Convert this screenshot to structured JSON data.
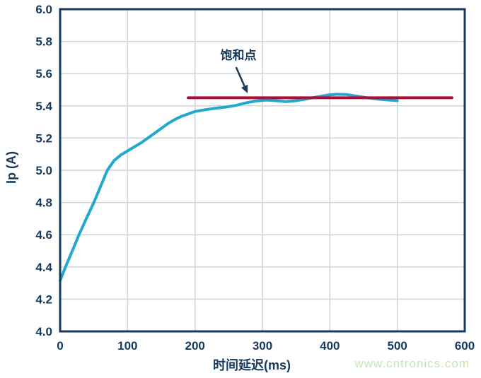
{
  "watermark": {
    "text": "www.cntronics.com",
    "color": "#c6e5b3"
  },
  "chart_data": {
    "type": "line",
    "title": "",
    "xlabel": "时间延迟(ms)",
    "ylabel": "Ip (A)",
    "xlim": [
      0,
      600
    ],
    "ylim": [
      4.0,
      6.0
    ],
    "grid": true,
    "legend_position": "none",
    "colors": {
      "axis_and_text": "#17395c",
      "grid": "#ccd4dc",
      "curve": "#23a8cd",
      "saturation_line": "#b00c38"
    },
    "xticks": [
      {
        "value": 0,
        "label": "0"
      },
      {
        "value": 100,
        "label": "100"
      },
      {
        "value": 200,
        "label": "200"
      },
      {
        "value": 300,
        "label": "300"
      },
      {
        "value": 400,
        "label": "400"
      },
      {
        "value": 500,
        "label": "500"
      },
      {
        "value": 600,
        "label": "600"
      }
    ],
    "yticks": [
      {
        "value": 4.0,
        "label": "4.0"
      },
      {
        "value": 4.2,
        "label": "4.2"
      },
      {
        "value": 4.4,
        "label": "4.4"
      },
      {
        "value": 4.6,
        "label": "4.6"
      },
      {
        "value": 4.8,
        "label": "4.8"
      },
      {
        "value": 5.0,
        "label": "5.0"
      },
      {
        "value": 5.2,
        "label": "5.2"
      },
      {
        "value": 5.4,
        "label": "5.4"
      },
      {
        "value": 5.6,
        "label": "5.6"
      },
      {
        "value": 5.8,
        "label": "5.8"
      },
      {
        "value": 6.0,
        "label": "6.0"
      }
    ],
    "series": [
      {
        "name": "ip-curve",
        "color": "#23a8cd",
        "width": 4,
        "points": [
          [
            0,
            4.315
          ],
          [
            8,
            4.4
          ],
          [
            18,
            4.5
          ],
          [
            28,
            4.6
          ],
          [
            40,
            4.71
          ],
          [
            50,
            4.8
          ],
          [
            60,
            4.9
          ],
          [
            70,
            5.0
          ],
          [
            80,
            5.06
          ],
          [
            90,
            5.095
          ],
          [
            100,
            5.12
          ],
          [
            110,
            5.145
          ],
          [
            120,
            5.17
          ],
          [
            130,
            5.2
          ],
          [
            140,
            5.23
          ],
          [
            150,
            5.26
          ],
          [
            160,
            5.29
          ],
          [
            170,
            5.315
          ],
          [
            180,
            5.335
          ],
          [
            190,
            5.35
          ],
          [
            200,
            5.365
          ],
          [
            215,
            5.376
          ],
          [
            230,
            5.385
          ],
          [
            245,
            5.392
          ],
          [
            260,
            5.402
          ],
          [
            275,
            5.418
          ],
          [
            290,
            5.43
          ],
          [
            305,
            5.436
          ],
          [
            320,
            5.432
          ],
          [
            335,
            5.426
          ],
          [
            350,
            5.432
          ],
          [
            365,
            5.443
          ],
          [
            380,
            5.455
          ],
          [
            395,
            5.466
          ],
          [
            410,
            5.472
          ],
          [
            425,
            5.47
          ],
          [
            440,
            5.46
          ],
          [
            455,
            5.45
          ],
          [
            470,
            5.442
          ],
          [
            485,
            5.437
          ],
          [
            500,
            5.432
          ]
        ]
      },
      {
        "name": "saturation-line",
        "color": "#b00c38",
        "width": 4,
        "points": [
          [
            190,
            5.45
          ],
          [
            581,
            5.45
          ]
        ]
      }
    ],
    "annotation": {
      "label": "饱和点",
      "arrow_from": [
        261,
        5.64
      ],
      "arrow_to": [
        278,
        5.478
      ]
    }
  }
}
